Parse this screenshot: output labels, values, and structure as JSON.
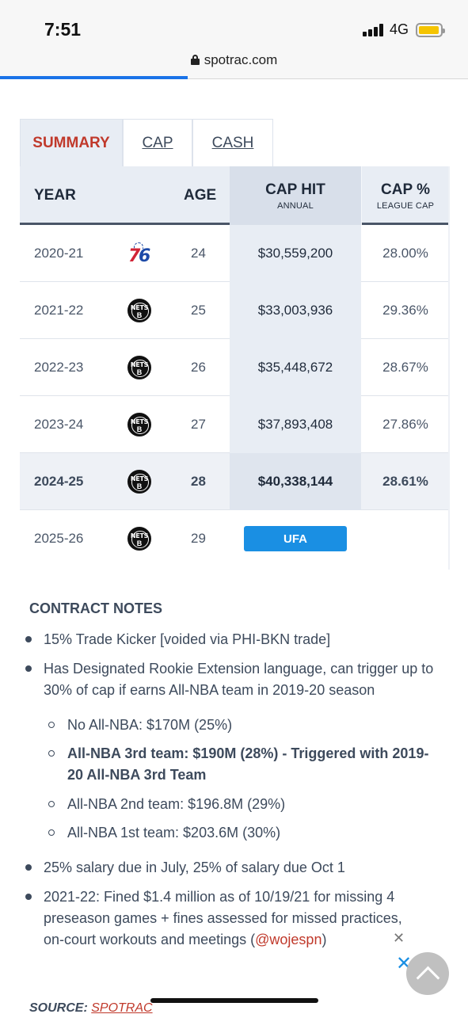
{
  "status": {
    "time": "7:51",
    "network": "4G"
  },
  "browser": {
    "url": "spotrac.com"
  },
  "tabs": [
    {
      "label": "SUMMARY"
    },
    {
      "label": "CAP"
    },
    {
      "label": "CASH"
    }
  ],
  "table": {
    "headers": {
      "year": "YEAR",
      "age": "AGE",
      "cap_hit": "CAP HIT",
      "cap_hit_sub": "ANNUAL",
      "cap_pct": "CAP %",
      "cap_pct_sub": "LEAGUE CAP"
    },
    "rows": [
      {
        "year": "2020-21",
        "team": "76ers",
        "age": "24",
        "cap_hit": "$30,559,200",
        "cap_pct": "28.00%"
      },
      {
        "year": "2021-22",
        "team": "Nets",
        "age": "25",
        "cap_hit": "$33,003,936",
        "cap_pct": "29.36%"
      },
      {
        "year": "2022-23",
        "team": "Nets",
        "age": "26",
        "cap_hit": "$35,448,672",
        "cap_pct": "28.67%"
      },
      {
        "year": "2023-24",
        "team": "Nets",
        "age": "27",
        "cap_hit": "$37,893,408",
        "cap_pct": "27.86%"
      },
      {
        "year": "2024-25",
        "team": "Nets",
        "age": "28",
        "cap_hit": "$40,338,144",
        "cap_pct": "28.61%"
      },
      {
        "year": "2025-26",
        "team": "Nets",
        "age": "29",
        "status": "UFA"
      }
    ]
  },
  "logos": {
    "sixers": "76",
    "nets_top": "NETS",
    "nets_b": "B"
  },
  "contract_notes": {
    "title": "CONTRACT NOTES",
    "items": [
      "15% Trade Kicker [voided via PHI-BKN trade]",
      "Has Designated Rookie Extension language, can trigger up to 30% of cap if earns All-NBA team in 2019-20 season",
      "25% salary due in July, 25% of salary due Oct 1",
      "2021-22: Fined $1.4 million as of 10/19/21 for missing 4 preseason games + fines assessed for missed practices, on-court workouts and meetings ("
    ],
    "link_text": "@wojespn",
    "link_suffix": ")",
    "sub_items": [
      "No All-NBA: $170M (25%)",
      "All-NBA 3rd team: $190M (28%) - Triggered with 2019-20 All-NBA 3rd Team",
      "All-NBA 2nd team: $196.8M (29%)",
      "All-NBA 1st team: $203.6M (30%)"
    ]
  },
  "source": {
    "label": "SOURCE:",
    "link": "SPOTRAC"
  },
  "icons": {
    "lock": "lock-icon",
    "close_ad": "close-icon",
    "scroll_top": "chevron-up-icon",
    "signal": "signal-icon",
    "battery": "battery-icon"
  },
  "colors": {
    "accent": "#1a8fe3",
    "active_tab": "#c0392b",
    "header_bg": "#e8edf4"
  }
}
